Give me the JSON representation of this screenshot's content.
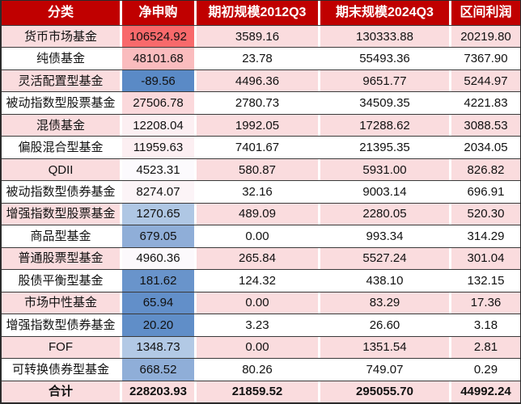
{
  "table": {
    "columns": [
      {
        "label": "分类"
      },
      {
        "label": "净申购"
      },
      {
        "label": "期初规模2012Q3"
      },
      {
        "label": "期末规模2024Q3"
      },
      {
        "label": "区间利润"
      }
    ],
    "rows": [
      {
        "cells": [
          "货币市场基金",
          "106524.92",
          "3589.16",
          "130333.88",
          "20219.80"
        ],
        "net_bg": "#F8696B",
        "bold": false
      },
      {
        "cells": [
          "纯债基金",
          "48101.68",
          "23.78",
          "55493.36",
          "7367.90"
        ],
        "net_bg": "#FABCBE",
        "bold": false
      },
      {
        "cells": [
          "灵活配置型基金",
          "-89.56",
          "4496.36",
          "9651.77",
          "5244.97"
        ],
        "net_bg": "#5A8AC6",
        "bold": false
      },
      {
        "cells": [
          "被动指数型股票基金",
          "27506.78",
          "2780.73",
          "34509.35",
          "4221.83"
        ],
        "net_bg": "#FBD9DC",
        "bold": false
      },
      {
        "cells": [
          "混债基金",
          "12208.04",
          "1992.05",
          "17288.62",
          "3088.53"
        ],
        "net_bg": "#FCEFF2",
        "bold": false
      },
      {
        "cells": [
          "偏股混合型基金",
          "11959.63",
          "7401.67",
          "21395.35",
          "2034.05"
        ],
        "net_bg": "#FCEFF2",
        "bold": false
      },
      {
        "cells": [
          "QDII",
          "4523.31",
          "580.87",
          "5931.00",
          "826.82"
        ],
        "net_bg": "#FCFAFD",
        "bold": false
      },
      {
        "cells": [
          "被动指数型债券基金",
          "8274.07",
          "32.16",
          "9003.14",
          "696.91"
        ],
        "net_bg": "#FCF4F7",
        "bold": false
      },
      {
        "cells": [
          "增强指数型股票基金",
          "1270.65",
          "489.09",
          "2280.05",
          "520.30"
        ],
        "net_bg": "#AFC7E4",
        "bold": false
      },
      {
        "cells": [
          "商品型基金",
          "679.05",
          "0.00",
          "993.34",
          "314.29"
        ],
        "net_bg": "#8FAED8",
        "bold": false
      },
      {
        "cells": [
          "普通股票型基金",
          "4960.36",
          "265.84",
          "5527.24",
          "301.04"
        ],
        "net_bg": "#FCF9FC",
        "bold": false
      },
      {
        "cells": [
          "股债平衡型基金",
          "181.62",
          "124.32",
          "438.10",
          "132.15"
        ],
        "net_bg": "#6994CB",
        "bold": false
      },
      {
        "cells": [
          "市场中性基金",
          "65.94",
          "0.00",
          "83.29",
          "17.36"
        ],
        "net_bg": "#628FC9",
        "bold": false
      },
      {
        "cells": [
          "增强指数型债券基金",
          "20.20",
          "3.23",
          "26.60",
          "3.18"
        ],
        "net_bg": "#608EC8",
        "bold": false
      },
      {
        "cells": [
          "FOF",
          "1348.73",
          "0.00",
          "1351.54",
          "2.81"
        ],
        "net_bg": "#B2C9E5",
        "bold": false
      },
      {
        "cells": [
          "可转换债券型基金",
          "668.52",
          "80.26",
          "749.07",
          "0.29"
        ],
        "net_bg": "#8FAED8",
        "bold": false
      },
      {
        "cells": [
          "合计",
          "228203.93",
          "21859.52",
          "295055.70",
          "44992.24"
        ],
        "net_bg": "",
        "bold": true
      }
    ]
  },
  "colors": {
    "header_bg": "#C00000",
    "header_text": "#FFFFFF",
    "row_pink": "#FADCDE",
    "row_white": "#FFFFFF",
    "grid_line": "#3A3A3A",
    "scale_min_blue": "#5A8AC6",
    "scale_mid_white": "#FCFCFF",
    "scale_max_red": "#F8696B"
  },
  "chart_data": {
    "type": "table",
    "title": "",
    "columns": [
      "分类",
      "净申购",
      "期初规模2012Q3",
      "期末规模2024Q3",
      "区间利润"
    ],
    "rows": [
      [
        "货币市场基金",
        106524.92,
        3589.16,
        130333.88,
        20219.8
      ],
      [
        "纯债基金",
        48101.68,
        23.78,
        55493.36,
        7367.9
      ],
      [
        "灵活配置型基金",
        -89.56,
        4496.36,
        9651.77,
        5244.97
      ],
      [
        "被动指数型股票基金",
        27506.78,
        2780.73,
        34509.35,
        4221.83
      ],
      [
        "混债基金",
        12208.04,
        1992.05,
        17288.62,
        3088.53
      ],
      [
        "偏股混合型基金",
        11959.63,
        7401.67,
        21395.35,
        2034.05
      ],
      [
        "QDII",
        4523.31,
        580.87,
        5931.0,
        826.82
      ],
      [
        "被动指数型债券基金",
        8274.07,
        32.16,
        9003.14,
        696.91
      ],
      [
        "增强指数型股票基金",
        1270.65,
        489.09,
        2280.05,
        520.3
      ],
      [
        "商品型基金",
        679.05,
        0.0,
        993.34,
        314.29
      ],
      [
        "普通股票型基金",
        4960.36,
        265.84,
        5527.24,
        301.04
      ],
      [
        "股债平衡型基金",
        181.62,
        124.32,
        438.1,
        132.15
      ],
      [
        "市场中性基金",
        65.94,
        0.0,
        83.29,
        17.36
      ],
      [
        "增强指数型债券基金",
        20.2,
        3.23,
        26.6,
        3.18
      ],
      [
        "FOF",
        1348.73,
        0.0,
        1351.54,
        2.81
      ],
      [
        "可转换债券型基金",
        668.52,
        80.26,
        749.07,
        0.29
      ],
      [
        "合计",
        228203.93,
        21859.52,
        295055.7,
        44992.24
      ]
    ],
    "notes": "净申购 column uses a 3-color conditional-formatting scale: blue (#5A8AC6, min -89.56) → white (#FCFCFF, midpoint) → red (#F8696B, max 106524.92). Rows zebra-striped pink/white; last row 合计 is the bold total row."
  }
}
